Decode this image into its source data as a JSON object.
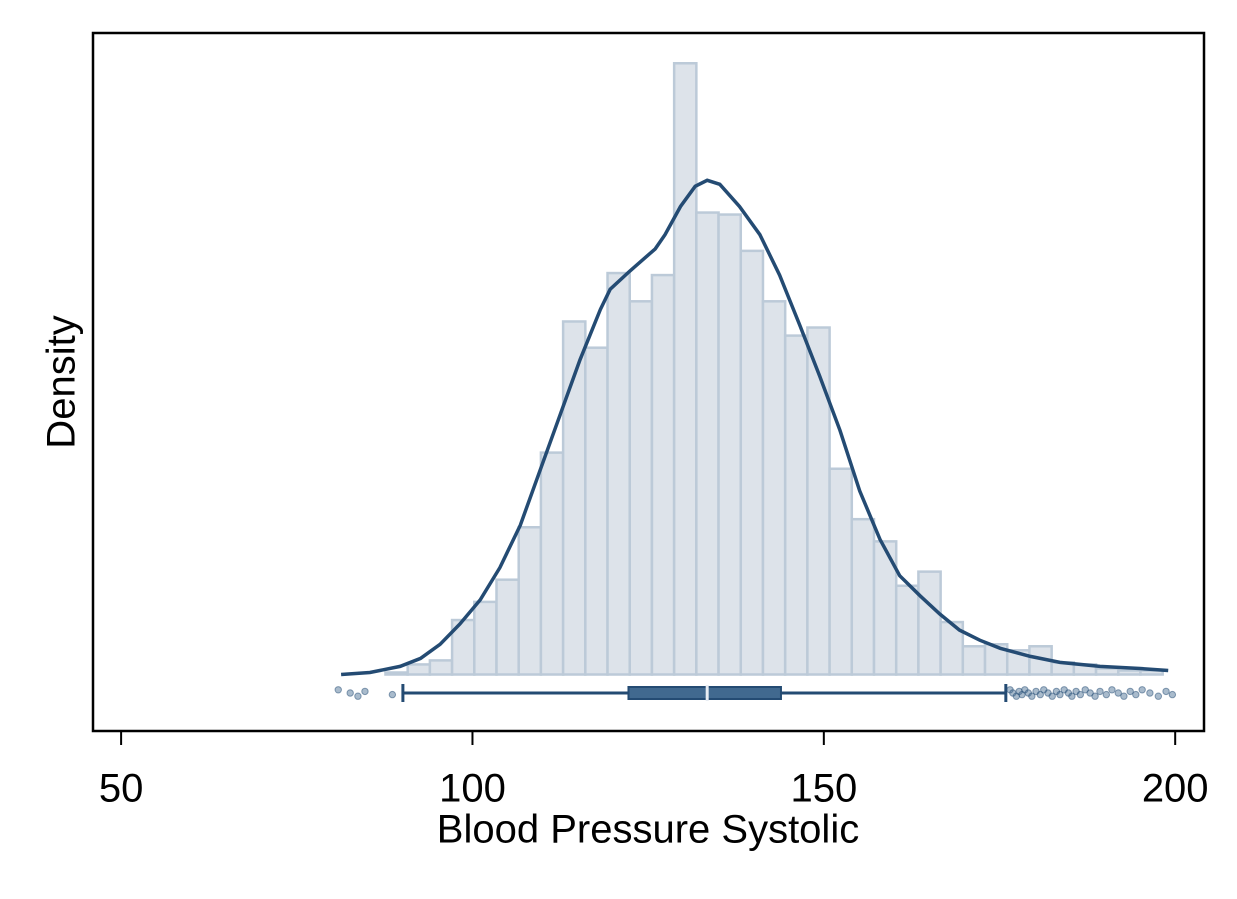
{
  "chart_data": {
    "type": "histogram",
    "xlabel": "Blood Pressure Systolic",
    "ylabel": "Density",
    "xlim": [
      46,
      204.1
    ],
    "ylim": [
      -0.0028,
      0.0318
    ],
    "xticks": [
      50,
      100,
      150,
      200
    ],
    "color": "#dde3ea",
    "edgecolor": "#bccad8",
    "bins": [
      81.3,
      84.46,
      87.62,
      90.78,
      93.94,
      97.1,
      100.26,
      103.42,
      106.58,
      109.74,
      112.9,
      116.06,
      119.22,
      122.38,
      125.54,
      128.7,
      131.86,
      135.02,
      138.18,
      141.34,
      144.5,
      147.66,
      150.82,
      153.98,
      157.14,
      160.3,
      163.46,
      166.62,
      169.78,
      172.94,
      176.1,
      179.26,
      182.42,
      185.58,
      188.74,
      191.9,
      195.06,
      198.22
    ],
    "values": [
      0,
      0,
      0.0001,
      0.0005,
      0.0007,
      0.0027,
      0.0036,
      0.0047,
      0.0073,
      0.011,
      0.0175,
      0.0162,
      0.0199,
      0.0185,
      0.0198,
      0.0303,
      0.0229,
      0.0228,
      0.021,
      0.0185,
      0.0168,
      0.0172,
      0.0102,
      0.0077,
      0.0066,
      0.0044,
      0.0051,
      0.0026,
      0.0014,
      0.0015,
      0.0012,
      0.0014,
      0.0006,
      0.0005,
      0.0003,
      0.0002,
      0.0002
    ],
    "density": {
      "color": "#244b73",
      "x": [
        81.3,
        85.4,
        89.7,
        92.6,
        95.4,
        98.2,
        101.1,
        103.9,
        106.8,
        109.6,
        112.5,
        115.3,
        118.2,
        119.6,
        122.4,
        126.0,
        127.4,
        129.6,
        131.7,
        133.4,
        135.2,
        138.0,
        140.9,
        143.7,
        146.6,
        149.4,
        152.3,
        155.1,
        158.0,
        160.8,
        163.7,
        166.5,
        169.3,
        172.2,
        175.1,
        179.4,
        183.6,
        189.3,
        195.0,
        199.0
      ],
      "y": [
        0.0,
        0.0001,
        0.0004,
        0.0008,
        0.0015,
        0.0025,
        0.0037,
        0.0053,
        0.0074,
        0.0101,
        0.0129,
        0.0156,
        0.0181,
        0.0191,
        0.02,
        0.0211,
        0.0218,
        0.0232,
        0.0242,
        0.0245,
        0.0243,
        0.0232,
        0.0218,
        0.0198,
        0.0173,
        0.0148,
        0.0121,
        0.0091,
        0.0067,
        0.0049,
        0.0039,
        0.003,
        0.0022,
        0.0017,
        0.0013,
        0.0009,
        0.0006,
        0.0004,
        0.0003,
        0.0002
      ]
    },
    "box": {
      "color": "#244b73",
      "fill": "#41698f",
      "whislo": 90.1,
      "q1": 122.2,
      "median": 133.4,
      "q3": 143.9,
      "whishi": 175.9,
      "outliers": [
        80.9,
        82.6,
        83.7,
        84.7,
        88.6,
        176.5,
        176.9,
        177.4,
        177.8,
        178.2,
        178.6,
        179.1,
        179.6,
        180.2,
        180.8,
        181.3,
        181.9,
        182.5,
        183.1,
        183.6,
        184.2,
        184.8,
        185.3,
        185.9,
        186.5,
        187.2,
        187.9,
        188.6,
        189.3,
        190.2,
        191.0,
        191.9,
        192.7,
        193.6,
        194.4,
        195.3,
        196.4,
        197.6,
        198.7,
        199.6
      ]
    }
  }
}
